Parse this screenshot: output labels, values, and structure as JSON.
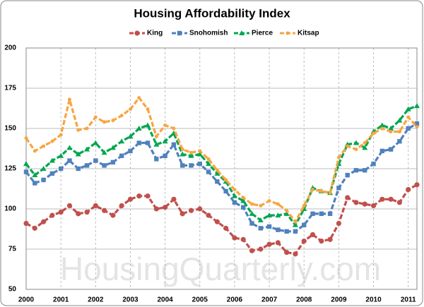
{
  "chart_data": {
    "type": "line",
    "title": "Housing Affordability Index",
    "watermark": "HousingQuarterly.com",
    "x": [
      2000,
      2000.25,
      2000.5,
      2000.75,
      2001,
      2001.25,
      2001.5,
      2001.75,
      2002,
      2002.25,
      2002.5,
      2002.75,
      2003,
      2003.25,
      2003.5,
      2003.75,
      2004,
      2004.25,
      2004.5,
      2004.75,
      2005,
      2005.25,
      2005.5,
      2005.75,
      2006,
      2006.25,
      2006.5,
      2006.75,
      2007,
      2007.25,
      2007.5,
      2007.75,
      2008,
      2008.25,
      2008.5,
      2008.75,
      2009,
      2009.25,
      2009.5,
      2009.75,
      2010,
      2010.25,
      2010.5,
      2010.75,
      2011,
      2011.25
    ],
    "series": [
      {
        "name": "King",
        "color": "#c0504d",
        "marker": "circle",
        "values": [
          91,
          88,
          92,
          96,
          98,
          102,
          97,
          98,
          102,
          99,
          96,
          102,
          106,
          108,
          108,
          100,
          101,
          106,
          97,
          99,
          100,
          96,
          92,
          88,
          82,
          81,
          74,
          75,
          78,
          79,
          73,
          72,
          80,
          84,
          80,
          81,
          91,
          107,
          104,
          103,
          102,
          106,
          106,
          104,
          112,
          115
        ]
      },
      {
        "name": "Snohomish",
        "color": "#4f81bd",
        "marker": "square",
        "values": [
          123,
          116,
          118,
          122,
          125,
          130,
          125,
          127,
          130,
          127,
          129,
          133,
          136,
          141,
          141,
          131,
          133,
          140,
          127,
          127,
          128,
          123,
          117,
          111,
          104,
          101,
          91,
          88,
          89,
          87,
          86,
          86,
          90,
          97,
          97,
          97,
          113,
          121,
          124,
          124,
          128,
          136,
          137,
          142,
          150,
          153
        ]
      },
      {
        "name": "Pierce",
        "color": "#00a650",
        "marker": "triangle",
        "values": [
          128,
          121,
          125,
          130,
          133,
          138,
          134,
          137,
          141,
          135,
          138,
          142,
          145,
          150,
          152,
          140,
          142,
          147,
          134,
          133,
          134,
          128,
          122,
          117,
          108,
          105,
          97,
          93,
          96,
          96,
          97,
          90,
          100,
          113,
          111,
          110,
          128,
          140,
          141,
          138,
          148,
          152,
          150,
          155,
          162,
          164
        ]
      },
      {
        "name": "Kitsap",
        "color": "#f7a541",
        "marker": "dot",
        "values": [
          144,
          136,
          139,
          142,
          146,
          168,
          149,
          150,
          157,
          154,
          155,
          158,
          162,
          169,
          162,
          145,
          152,
          150,
          137,
          135,
          136,
          131,
          124,
          118,
          112,
          107,
          103,
          102,
          105,
          103,
          99,
          92,
          102,
          112,
          111,
          110,
          132,
          139,
          137,
          141,
          147,
          150,
          148,
          148,
          157,
          151
        ]
      }
    ],
    "xlim": [
      2000,
      2011.25
    ],
    "xticks": [
      2000,
      2001,
      2002,
      2003,
      2004,
      2005,
      2006,
      2007,
      2008,
      2009,
      2010,
      2011
    ],
    "ylim": [
      50,
      200
    ],
    "yticks": [
      50,
      75,
      100,
      125,
      150,
      175,
      200
    ],
    "grid": true
  }
}
